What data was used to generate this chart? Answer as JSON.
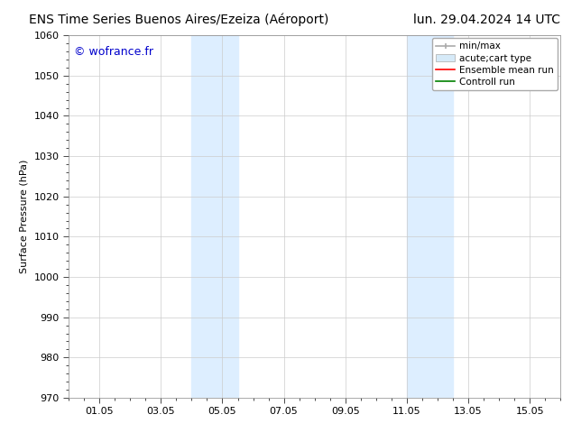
{
  "title_left": "ENS Time Series Buenos Aires/Ezeiza (Aéroport)",
  "title_right": "lun. 29.04.2024 14 UTC",
  "ylabel": "Surface Pressure (hPa)",
  "watermark": "© wofrance.fr",
  "watermark_color": "#0000cc",
  "ylim": [
    970,
    1060
  ],
  "yticks": [
    970,
    980,
    990,
    1000,
    1010,
    1020,
    1030,
    1040,
    1050,
    1060
  ],
  "xtick_labels": [
    "01.05",
    "03.05",
    "05.05",
    "07.05",
    "09.05",
    "11.05",
    "13.05",
    "15.05"
  ],
  "xtick_positions": [
    1,
    3,
    5,
    7,
    9,
    11,
    13,
    15
  ],
  "xlim": [
    0,
    16
  ],
  "shaded_regions": [
    {
      "xmin": 4.0,
      "xmax": 5.5,
      "color": "#ddeeff"
    },
    {
      "xmin": 11.0,
      "xmax": 12.5,
      "color": "#ddeeff"
    }
  ],
  "bg_color": "#ffffff",
  "plot_bg_color": "#ffffff",
  "grid_color": "#cccccc",
  "title_fontsize": 10,
  "axis_label_fontsize": 8,
  "tick_fontsize": 8,
  "watermark_fontsize": 9,
  "legend_fontsize": 7.5
}
